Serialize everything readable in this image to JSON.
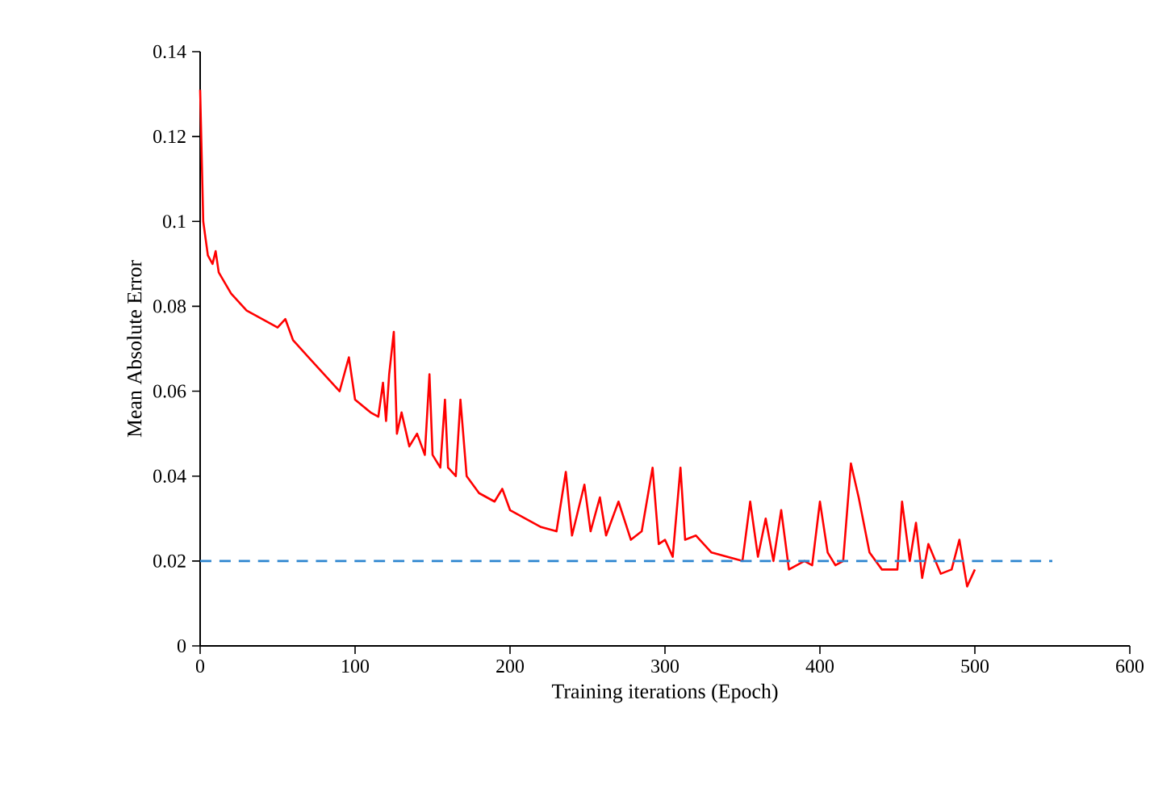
{
  "chart_data": {
    "type": "line",
    "xlabel": "Training iterations (Epoch)",
    "ylabel": "Mean Absolute Error",
    "xlim": [
      0,
      600
    ],
    "xticks": [
      0,
      100,
      200,
      300,
      400,
      500,
      600
    ],
    "ylim": [
      0,
      0.14
    ],
    "yticks": [
      0,
      0.02,
      0.04,
      0.06,
      0.08,
      0.1,
      0.12,
      0.14
    ],
    "grid": false,
    "marker": "none",
    "series": [
      {
        "color": "#ff0000",
        "line_style": "solid",
        "x": [
          0,
          2,
          5,
          8,
          10,
          12,
          20,
          30,
          40,
          50,
          55,
          60,
          70,
          80,
          90,
          96,
          100,
          110,
          115,
          118,
          120,
          122,
          125,
          127,
          130,
          135,
          140,
          145,
          148,
          150,
          155,
          158,
          160,
          165,
          168,
          172,
          180,
          190,
          195,
          200,
          210,
          220,
          230,
          236,
          240,
          248,
          252,
          258,
          262,
          270,
          278,
          285,
          292,
          296,
          300,
          305,
          310,
          313,
          320,
          330,
          340,
          350,
          355,
          360,
          365,
          370,
          375,
          380,
          390,
          395,
          400,
          405,
          410,
          415,
          420,
          425,
          432,
          440,
          450,
          453,
          458,
          462,
          466,
          470,
          478,
          485,
          490,
          495,
          500
        ],
        "values": [
          0.131,
          0.1,
          0.092,
          0.09,
          0.093,
          0.088,
          0.083,
          0.079,
          0.077,
          0.075,
          0.077,
          0.072,
          0.068,
          0.064,
          0.06,
          0.068,
          0.058,
          0.055,
          0.054,
          0.062,
          0.053,
          0.064,
          0.074,
          0.05,
          0.055,
          0.047,
          0.05,
          0.045,
          0.064,
          0.045,
          0.042,
          0.058,
          0.042,
          0.04,
          0.058,
          0.04,
          0.036,
          0.034,
          0.037,
          0.032,
          0.03,
          0.028,
          0.027,
          0.041,
          0.026,
          0.038,
          0.027,
          0.035,
          0.026,
          0.034,
          0.025,
          0.027,
          0.042,
          0.024,
          0.025,
          0.021,
          0.042,
          0.025,
          0.026,
          0.022,
          0.021,
          0.02,
          0.034,
          0.021,
          0.03,
          0.02,
          0.032,
          0.018,
          0.02,
          0.019,
          0.034,
          0.022,
          0.019,
          0.02,
          0.043,
          0.035,
          0.022,
          0.018,
          0.018,
          0.034,
          0.02,
          0.029,
          0.016,
          0.024,
          0.017,
          0.018,
          0.025,
          0.014,
          0.018
        ]
      },
      {
        "color": "#2e86d0",
        "line_style": "dashed",
        "x": [
          0,
          550
        ],
        "values": [
          0.02,
          0.02
        ]
      }
    ]
  }
}
